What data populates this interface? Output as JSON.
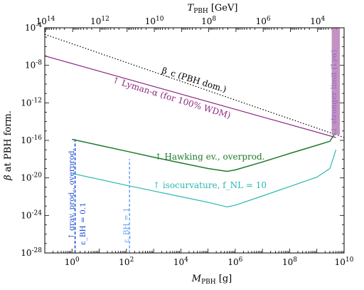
{
  "chart_data": {
    "type": "line",
    "xlabel": "M_PBH [g]",
    "x2label": "T_PBH [GeV]",
    "ylabel": "β at PBH form.",
    "xscale": "log",
    "yscale": "log",
    "xlim": [
      0.1,
      10000000000
    ],
    "ylim": [
      1e-28,
      0.0001
    ],
    "x_tick_labels": [
      "10^0",
      "10^2",
      "10^4",
      "10^6",
      "10^8",
      "10^10"
    ],
    "x_tick_values": [
      1,
      100,
      10000,
      1000000,
      100000000,
      10000000000
    ],
    "y_tick_labels": [
      "10^-4",
      "10^-8",
      "10^-12",
      "10^-16",
      "10^-20",
      "10^-24",
      "10^-28"
    ],
    "y_tick_values": [
      0.0001,
      1e-08,
      1e-12,
      1e-16,
      1e-20,
      1e-24,
      1e-28
    ],
    "x2_tick_labels": [
      "10^14",
      "10^12",
      "10^10",
      "10^8",
      "10^6",
      "10^4"
    ],
    "x2_tick_values": [
      100000000000000,
      1000000000000,
      10000000000,
      100000000,
      1000000,
      10000
    ],
    "series": [
      {
        "key": "beta_c",
        "color": "#000000",
        "style": "dotted",
        "x": [
          0.1,
          10000000000
        ],
        "y": [
          2e-05,
          2e-16
        ]
      },
      {
        "key": "lyman",
        "color": "#8e2a82",
        "style": "solid",
        "x": [
          0.1,
          5000000000
        ],
        "y": [
          1e-07,
          2e-16
        ]
      },
      {
        "key": "hawking",
        "color": "#1e7a2a",
        "style": "solid",
        "x": [
          1,
          10,
          100,
          1000,
          10000,
          100000,
          500000,
          1000000,
          10000000,
          100000000,
          1000000000,
          3000000000,
          5000000000
        ],
        "y": [
          1.3e-16,
          3e-17,
          7e-18,
          1.6e-18,
          4e-19,
          1e-19,
          5e-20,
          7e-20,
          5e-19,
          4e-18,
          3e-17,
          8e-17,
          8e-16
        ]
      },
      {
        "key": "isocurvature",
        "color": "#2ab7b2",
        "style": "solid",
        "x": [
          1,
          10,
          100,
          1000,
          10000,
          100000,
          500000,
          1000000,
          10000000,
          100000000,
          1000000000,
          3000000000,
          5000000000
        ],
        "y": [
          3e-20,
          7e-21,
          1.6e-21,
          4e-22,
          1e-22,
          2.5e-23,
          8e-24,
          1.2e-23,
          1.2e-22,
          1.2e-21,
          1.2e-20,
          1e-19,
          1e-17
        ]
      },
      {
        "key": "grav_01",
        "color": "#1f4fd6",
        "style": "dashed",
        "x": [
          1.3,
          1.3
        ],
        "y": [
          1e-28,
          1.3e-16
        ]
      },
      {
        "key": "grav_1",
        "color": "#6ea8f0",
        "style": "dashed",
        "x": [
          130,
          130
        ],
        "y": [
          1e-28,
          1e-18
        ]
      },
      {
        "key": "stronger_limit",
        "color": "#b87fb8",
        "style": "band",
        "x": [
          3500000000,
          3500000000,
          7000000000,
          7000000000
        ],
        "y": [
          0.0001,
          4e-16,
          4e-16,
          0.0001
        ]
      }
    ],
    "annotations": {
      "beta_c": "β_c (PBH dom.)",
      "lyman": "↑ Lyman-α (for 100% WDM)",
      "hawking": "↑ Hawking ev., overprod.",
      "isocurvature": "↑ isocurvature, f_NL = 10",
      "grav": "↑ grav. prod., overprod.",
      "eps_01": "ε_BH = 0.1",
      "eps_1": "ε_BH = 1",
      "stronger": "↓ stronger limit (Lyα)"
    },
    "grid": false,
    "legend": "none"
  }
}
